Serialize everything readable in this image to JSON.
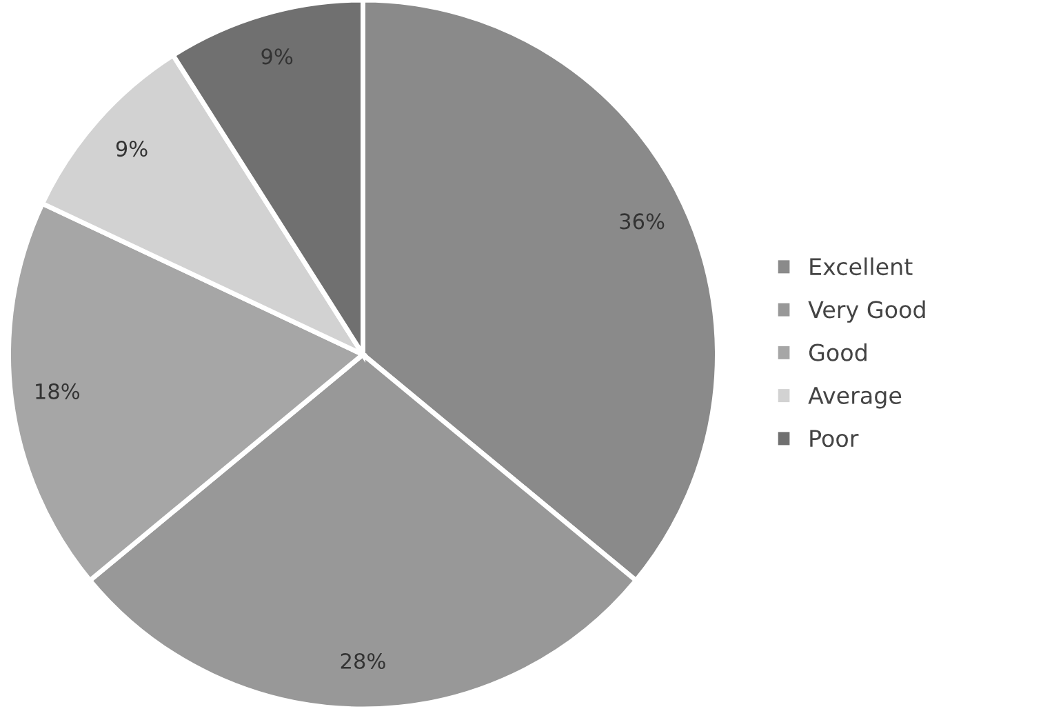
{
  "chart_data": {
    "type": "pie",
    "categories": [
      "Excellent",
      "Very Good",
      "Good",
      "Average",
      "Poor"
    ],
    "values": [
      36,
      28,
      18,
      9,
      9
    ],
    "colors": [
      "#8a8a8a",
      "#989898",
      "#a6a6a6",
      "#d2d2d2",
      "#707070"
    ],
    "value_labels": [
      "36%",
      "28%",
      "18%",
      "9%",
      "9%"
    ],
    "legend": "right"
  }
}
